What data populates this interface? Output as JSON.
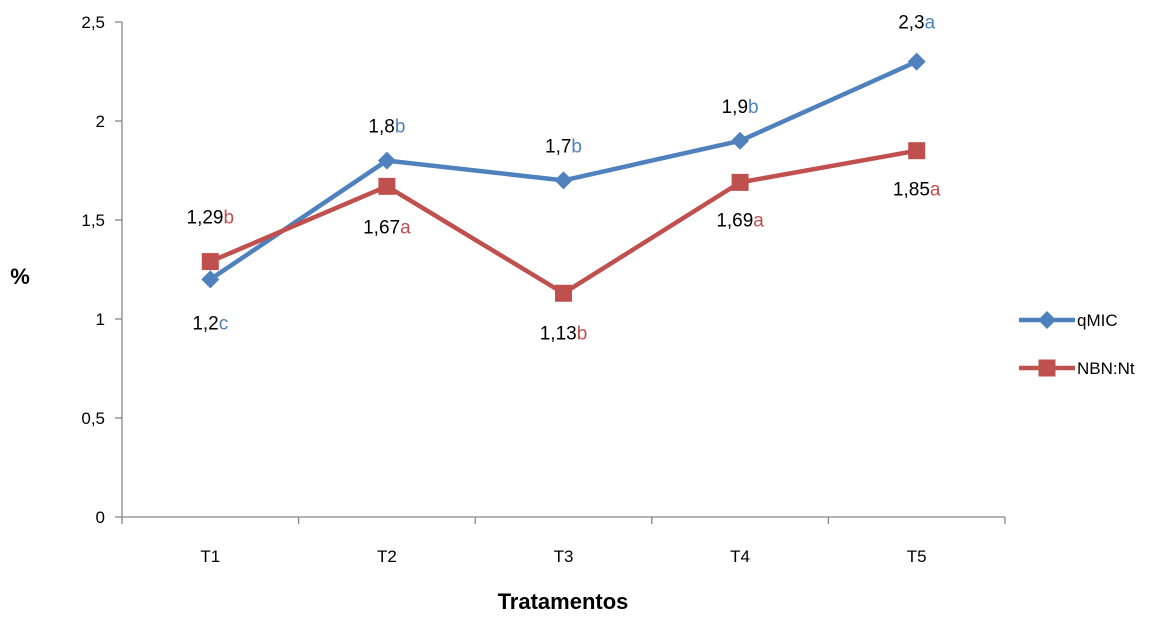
{
  "chart_data": {
    "type": "line",
    "title": "",
    "xlabel": "Tratamentos",
    "ylabel": "%",
    "categories": [
      "T1",
      "T2",
      "T3",
      "T4",
      "T5"
    ],
    "ylim": [
      0,
      2.5
    ],
    "y_ticks": [
      "0",
      "0,5",
      "1",
      "1,5",
      "2",
      "2,5"
    ],
    "y_tick_values": [
      0,
      0.5,
      1,
      1.5,
      2,
      2.5
    ],
    "grid": false,
    "legend_position": "right",
    "series": [
      {
        "name": "qMIC",
        "color": "#4f81bd",
        "marker": "diamond",
        "values": [
          1.2,
          1.8,
          1.7,
          1.9,
          2.3
        ],
        "labels": [
          {
            "value": "1,2",
            "letter": "c"
          },
          {
            "value": "1,8",
            "letter": "b"
          },
          {
            "value": "1,7",
            "letter": "b"
          },
          {
            "value": "1,9",
            "letter": "b"
          },
          {
            "value": "2,3",
            "letter": "a"
          }
        ]
      },
      {
        "name": "NBN:Nt",
        "color": "#c0504d",
        "marker": "square",
        "values": [
          1.29,
          1.67,
          1.13,
          1.69,
          1.85
        ],
        "labels": [
          {
            "value": "1,29",
            "letter": "b"
          },
          {
            "value": "1,67",
            "letter": "a"
          },
          {
            "value": "1,13",
            "letter": "b"
          },
          {
            "value": "1,69",
            "letter": "a"
          },
          {
            "value": "1,85",
            "letter": "a"
          }
        ]
      }
    ]
  }
}
